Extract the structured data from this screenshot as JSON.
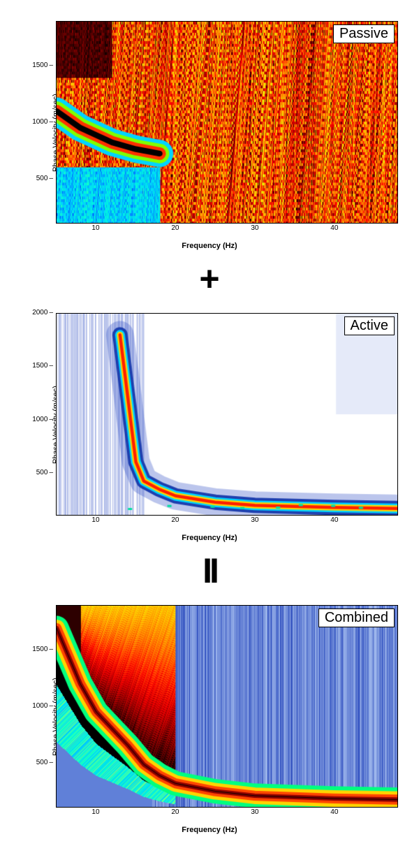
{
  "global": {
    "background_color": "#ffffff",
    "font_family": "Arial",
    "operator_plus": "+",
    "operator_equals": "II"
  },
  "axes": {
    "xlabel": "Frequency (Hz)",
    "ylabel": "Phase Velocity (m/sec)",
    "xlim": [
      5,
      48
    ],
    "xtick_step": 10,
    "xticks": [
      10,
      20,
      30,
      40
    ],
    "label_fontsize": 11,
    "tick_fontsize": 10,
    "border_color": "#000000"
  },
  "palette_jet": [
    "#00008b",
    "#0000ff",
    "#007fff",
    "#00d4ff",
    "#00ffd4",
    "#7fff7f",
    "#d4ff00",
    "#ffd400",
    "#ff7f00",
    "#ff0000",
    "#8b0000",
    "#000000"
  ],
  "panels": [
    {
      "id": "passive",
      "badge": "Passive",
      "type": "heatmap",
      "ylim": [
        100,
        1900
      ],
      "yticks": [
        500,
        1000,
        1500
      ],
      "background_mode": "hot_noise",
      "dispersion_curve": {
        "points": [
          {
            "f": 5,
            "v": 1100
          },
          {
            "f": 8,
            "v": 950
          },
          {
            "f": 12,
            "v": 820
          },
          {
            "f": 15,
            "v": 760
          },
          {
            "f": 18,
            "v": 720
          }
        ],
        "color_core": "#000000",
        "color_halo": "#ff3000",
        "halo_outer": "#00d4ff",
        "thickness": 14
      },
      "colors": {
        "background_mix": [
          "#8b0000",
          "#ff3000",
          "#ffd400",
          "#7fff00",
          "#00d4ff",
          "#000000"
        ],
        "low_region": "#00d4ff",
        "low_region_under": "#1e60ff"
      }
    },
    {
      "id": "active",
      "badge": "Active",
      "type": "heatmap",
      "ylim": [
        100,
        2000
      ],
      "yticks": [
        500,
        1000,
        1500,
        2000
      ],
      "background_mode": "white_sparse",
      "dispersion_curve": {
        "points": [
          {
            "f": 13,
            "v": 1800
          },
          {
            "f": 14,
            "v": 1200
          },
          {
            "f": 15,
            "v": 600
          },
          {
            "f": 16,
            "v": 420
          },
          {
            "f": 18,
            "v": 340
          },
          {
            "f": 20,
            "v": 280
          },
          {
            "f": 25,
            "v": 220
          },
          {
            "f": 30,
            "v": 190
          },
          {
            "f": 40,
            "v": 170
          },
          {
            "f": 48,
            "v": 160
          }
        ],
        "color_core": "#ff2000",
        "color_halo": "#1e40af",
        "thickness": 10
      },
      "colors": {
        "background": "#ffffff",
        "halo": "#9ab4e8",
        "secondary_blobs": "#3b5bdb"
      }
    },
    {
      "id": "combined",
      "badge": "Combined",
      "type": "heatmap",
      "ylim": [
        100,
        1900
      ],
      "yticks": [
        500,
        1000,
        1500
      ],
      "background_mode": "blue_streaks",
      "dispersion_curve": {
        "points": [
          {
            "f": 5,
            "v": 1700
          },
          {
            "f": 8,
            "v": 1200
          },
          {
            "f": 10,
            "v": 950
          },
          {
            "f": 12,
            "v": 800
          },
          {
            "f": 14,
            "v": 650
          },
          {
            "f": 16,
            "v": 480
          },
          {
            "f": 18,
            "v": 380
          },
          {
            "f": 20,
            "v": 310
          },
          {
            "f": 25,
            "v": 240
          },
          {
            "f": 30,
            "v": 200
          },
          {
            "f": 40,
            "v": 175
          },
          {
            "f": 48,
            "v": 165
          }
        ],
        "color_core": "#8b0000",
        "color_mid": "#ff4500",
        "color_halo": "#ffd400",
        "color_outer": "#00ff7f",
        "thickness": 16
      },
      "colors": {
        "background_streak_light": "#a8c0f0",
        "background_streak_dark": "#3050c0",
        "background_base": "#6080d8",
        "hot_corner": "#8b0000"
      }
    }
  ]
}
